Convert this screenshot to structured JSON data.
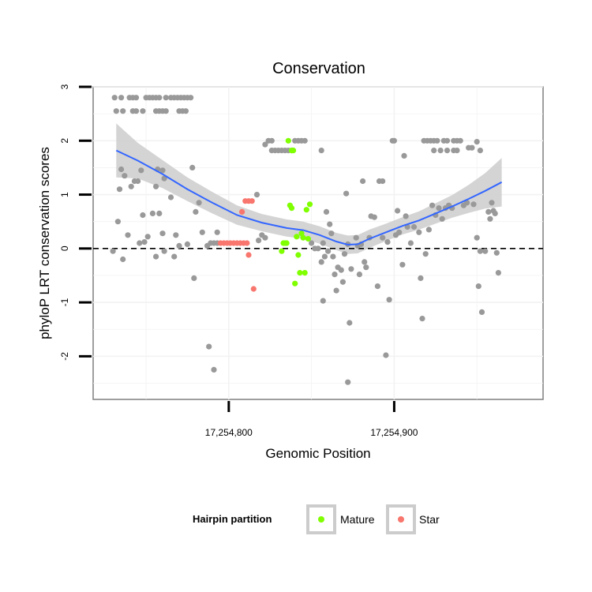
{
  "chart_data": {
    "type": "scatter",
    "title": "Conservation",
    "xlabel": "Genomic Position",
    "ylabel": "phyloP LRT conservation scores",
    "xlim": [
      17254718,
      17254990
    ],
    "ylim": [
      -2.8,
      3.0
    ],
    "x_ticks": [
      {
        "value": 17254800,
        "label": "17,254,800"
      },
      {
        "value": 17254900,
        "label": "17,254,900"
      }
    ],
    "y_ticks": [
      {
        "value": -2,
        "label": "-2"
      },
      {
        "value": -1,
        "label": "-1"
      },
      {
        "value": 0,
        "label": "0"
      },
      {
        "value": 1,
        "label": "1"
      },
      {
        "value": 2,
        "label": "2"
      },
      {
        "value": 3,
        "label": "3"
      }
    ],
    "reference_line": {
      "y": 0,
      "style": "dashed",
      "color": "#000000"
    },
    "grid": true,
    "legend": {
      "title": "Hairpin partition",
      "placement": "bottom",
      "entries": [
        {
          "label": "Mature",
          "color": "#7fff00"
        },
        {
          "label": "Star",
          "color": "#f8766d"
        }
      ]
    },
    "colors": {
      "other": "#999999",
      "Mature": "#7fff00",
      "Star": "#f8766d",
      "smooth_line": "#3366ff",
      "smooth_band": "#cccccc"
    },
    "series": [
      {
        "partition": "other",
        "points": [
          [
            17254731,
            2.8
          ],
          [
            17254735,
            2.8
          ],
          [
            17254740,
            2.8
          ],
          [
            17254742,
            2.8
          ],
          [
            17254744,
            2.8
          ],
          [
            17254750,
            2.8
          ],
          [
            17254752,
            2.8
          ],
          [
            17254754,
            2.8
          ],
          [
            17254756,
            2.8
          ],
          [
            17254758,
            2.8
          ],
          [
            17254762,
            2.8
          ],
          [
            17254765,
            2.8
          ],
          [
            17254767,
            2.8
          ],
          [
            17254769,
            2.8
          ],
          [
            17254771,
            2.8
          ],
          [
            17254773,
            2.8
          ],
          [
            17254775,
            2.8
          ],
          [
            17254777,
            2.8
          ],
          [
            17254732,
            2.55
          ],
          [
            17254736,
            2.55
          ],
          [
            17254742,
            2.55
          ],
          [
            17254744,
            2.55
          ],
          [
            17254748,
            2.55
          ],
          [
            17254756,
            2.55
          ],
          [
            17254758,
            2.55
          ],
          [
            17254760,
            2.55
          ],
          [
            17254762,
            2.55
          ],
          [
            17254770,
            2.55
          ],
          [
            17254772,
            2.55
          ],
          [
            17254774,
            2.55
          ],
          [
            17254733,
            0.5
          ],
          [
            17254734,
            1.1
          ],
          [
            17254735,
            1.47
          ],
          [
            17254737,
            1.35
          ],
          [
            17254739,
            0.25
          ],
          [
            17254741,
            1.15
          ],
          [
            17254743,
            1.25
          ],
          [
            17254745,
            1.25
          ],
          [
            17254747,
            1.45
          ],
          [
            17254748,
            0.62
          ],
          [
            17254749,
            0.12
          ],
          [
            17254751,
            0.22
          ],
          [
            17254754,
            0.65
          ],
          [
            17254756,
            1.15
          ],
          [
            17254757,
            1.47
          ],
          [
            17254758,
            0.65
          ],
          [
            17254760,
            1.45
          ],
          [
            17254761,
            1.3
          ],
          [
            17254760,
            0.28
          ],
          [
            17254765,
            0.95
          ],
          [
            17254768,
            0.25
          ],
          [
            17254775,
            0.08
          ],
          [
            17254778,
            1.5
          ],
          [
            17254779,
            -0.55
          ],
          [
            17254780,
            0.68
          ],
          [
            17254782,
            0.85
          ],
          [
            17254784,
            0.3
          ],
          [
            17254730,
            -0.05
          ],
          [
            17254736,
            -0.2
          ],
          [
            17254746,
            0.1
          ],
          [
            17254756,
            -0.15
          ],
          [
            17254761,
            -0.05
          ],
          [
            17254767,
            -0.15
          ],
          [
            17254770,
            0.05
          ],
          [
            17254788,
            -1.82
          ],
          [
            17254791,
            -2.25
          ],
          [
            17254787,
            0.05
          ],
          [
            17254789,
            0.1
          ],
          [
            17254791,
            0.1
          ],
          [
            17254793,
            0.3
          ],
          [
            17254793,
            0.1
          ],
          [
            17254817,
            1.0
          ],
          [
            17254818,
            0.15
          ],
          [
            17254820,
            0.25
          ],
          [
            17254822,
            0.2
          ],
          [
            17254822,
            1.93
          ],
          [
            17254824,
            2.0
          ],
          [
            17254826,
            2.0
          ],
          [
            17254826,
            1.82
          ],
          [
            17254828,
            1.82
          ],
          [
            17254830,
            1.82
          ],
          [
            17254832,
            1.82
          ],
          [
            17254834,
            1.82
          ],
          [
            17254836,
            1.82
          ],
          [
            17254838,
            1.82
          ],
          [
            17254840,
            2.0
          ],
          [
            17254842,
            2.0
          ],
          [
            17254844,
            2.0
          ],
          [
            17254846,
            2.0
          ],
          [
            17254850,
            0.1
          ],
          [
            17254852,
            0.0
          ],
          [
            17254854,
            0.0
          ],
          [
            17254856,
            1.82
          ],
          [
            17254857,
            0.1
          ],
          [
            17254858,
            -0.15
          ],
          [
            17254859,
            0.68
          ],
          [
            17254861,
            0.45
          ],
          [
            17254862,
            0.28
          ],
          [
            17254863,
            -0.15
          ],
          [
            17254864,
            -0.48
          ],
          [
            17254865,
            -0.78
          ],
          [
            17254856,
            -0.25
          ],
          [
            17254857,
            -0.97
          ],
          [
            17254860,
            -0.05
          ],
          [
            17254866,
            -0.35
          ],
          [
            17254868,
            -0.4
          ],
          [
            17254870,
            -0.1
          ],
          [
            17254869,
            -0.62
          ],
          [
            17254871,
            1.02
          ],
          [
            17254872,
            0.08
          ],
          [
            17254873,
            -1.38
          ],
          [
            17254874,
            -0.38
          ],
          [
            17254872,
            -2.48
          ],
          [
            17254877,
            0.2
          ],
          [
            17254878,
            0.05
          ],
          [
            17254879,
            -0.48
          ],
          [
            17254880,
            0.08
          ],
          [
            17254881,
            1.25
          ],
          [
            17254882,
            -0.25
          ],
          [
            17254883,
            -0.35
          ],
          [
            17254885,
            0.2
          ],
          [
            17254886,
            0.6
          ],
          [
            17254888,
            0.58
          ],
          [
            17254890,
            -0.7
          ],
          [
            17254891,
            1.25
          ],
          [
            17254893,
            1.25
          ],
          [
            17254895,
            -1.98
          ],
          [
            17254893,
            0.2
          ],
          [
            17254896,
            0.12
          ],
          [
            17254897,
            -0.95
          ],
          [
            17254899,
            2.0
          ],
          [
            17254900,
            2.0
          ],
          [
            17254901,
            0.25
          ],
          [
            17254902,
            0.7
          ],
          [
            17254903,
            0.3
          ],
          [
            17254905,
            -0.3
          ],
          [
            17254906,
            1.72
          ],
          [
            17254907,
            0.6
          ],
          [
            17254908,
            0.4
          ],
          [
            17254910,
            0.1
          ],
          [
            17254912,
            0.4
          ],
          [
            17254915,
            0.3
          ],
          [
            17254916,
            -0.55
          ],
          [
            17254917,
            -1.3
          ],
          [
            17254919,
            -0.1
          ],
          [
            17254921,
            0.35
          ],
          [
            17254923,
            0.8
          ],
          [
            17254925,
            0.62
          ],
          [
            17254927,
            0.75
          ],
          [
            17254929,
            0.55
          ],
          [
            17254931,
            0.75
          ],
          [
            17254933,
            0.8
          ],
          [
            17254935,
            0.75
          ],
          [
            17254918,
            2.0
          ],
          [
            17254920,
            2.0
          ],
          [
            17254922,
            2.0
          ],
          [
            17254924,
            2.0
          ],
          [
            17254926,
            2.0
          ],
          [
            17254930,
            2.0
          ],
          [
            17254932,
            2.0
          ],
          [
            17254936,
            2.0
          ],
          [
            17254938,
            2.0
          ],
          [
            17254940,
            2.0
          ],
          [
            17254924,
            1.82
          ],
          [
            17254928,
            1.82
          ],
          [
            17254932,
            1.82
          ],
          [
            17254936,
            1.82
          ],
          [
            17254938,
            1.82
          ],
          [
            17254945,
            1.87
          ],
          [
            17254947,
            1.87
          ],
          [
            17254950,
            1.98
          ],
          [
            17254952,
            1.82
          ],
          [
            17254942,
            0.8
          ],
          [
            17254944,
            0.85
          ],
          [
            17254948,
            0.82
          ],
          [
            17254950,
            0.2
          ],
          [
            17254951,
            -0.7
          ],
          [
            17254952,
            -0.05
          ],
          [
            17254953,
            -1.18
          ],
          [
            17254955,
            -0.05
          ],
          [
            17254957,
            0.68
          ],
          [
            17254958,
            0.55
          ],
          [
            17254959,
            0.85
          ],
          [
            17254960,
            0.7
          ],
          [
            17254961,
            0.65
          ],
          [
            17254962,
            -0.08
          ],
          [
            17254963,
            -0.45
          ]
        ]
      },
      {
        "partition": "Mature",
        "points": [
          [
            17254832,
            -0.05
          ],
          [
            17254833,
            0.1
          ],
          [
            17254834,
            0.1
          ],
          [
            17254835,
            0.1
          ],
          [
            17254836,
            2.0
          ],
          [
            17254837,
            0.8
          ],
          [
            17254838,
            0.75
          ],
          [
            17254838,
            1.82
          ],
          [
            17254839,
            1.82
          ],
          [
            17254840,
            -0.65
          ],
          [
            17254841,
            0.22
          ],
          [
            17254842,
            -0.12
          ],
          [
            17254843,
            -0.45
          ],
          [
            17254844,
            0.28
          ],
          [
            17254845,
            0.2
          ],
          [
            17254846,
            -0.45
          ],
          [
            17254847,
            0.72
          ],
          [
            17254848,
            0.18
          ],
          [
            17254849,
            0.82
          ]
        ]
      },
      {
        "partition": "Star",
        "points": [
          [
            17254795,
            0.1
          ],
          [
            17254797,
            0.1
          ],
          [
            17254799,
            0.1
          ],
          [
            17254801,
            0.1
          ],
          [
            17254803,
            0.1
          ],
          [
            17254805,
            0.1
          ],
          [
            17254807,
            0.1
          ],
          [
            17254809,
            0.1
          ],
          [
            17254811,
            0.1
          ],
          [
            17254808,
            0.68
          ],
          [
            17254810,
            0.88
          ],
          [
            17254812,
            0.88
          ],
          [
            17254814,
            0.88
          ],
          [
            17254812,
            -0.12
          ],
          [
            17254815,
            -0.75
          ]
        ]
      }
    ],
    "smooth": {
      "method": "loess",
      "x": [
        17254732,
        17254745,
        17254760,
        17254775,
        17254790,
        17254805,
        17254820,
        17254835,
        17254845,
        17254855,
        17254865,
        17254872,
        17254878,
        17254885,
        17254895,
        17254905,
        17254915,
        17254925,
        17254935,
        17254945,
        17254955,
        17254965
      ],
      "y": [
        1.82,
        1.63,
        1.38,
        1.1,
        0.85,
        0.62,
        0.48,
        0.38,
        0.34,
        0.25,
        0.13,
        0.07,
        0.08,
        0.18,
        0.3,
        0.42,
        0.52,
        0.65,
        0.78,
        0.92,
        1.07,
        1.23
      ],
      "se": [
        0.5,
        0.33,
        0.26,
        0.22,
        0.2,
        0.18,
        0.16,
        0.16,
        0.16,
        0.16,
        0.16,
        0.17,
        0.17,
        0.17,
        0.16,
        0.16,
        0.17,
        0.19,
        0.21,
        0.26,
        0.33,
        0.45
      ]
    }
  }
}
